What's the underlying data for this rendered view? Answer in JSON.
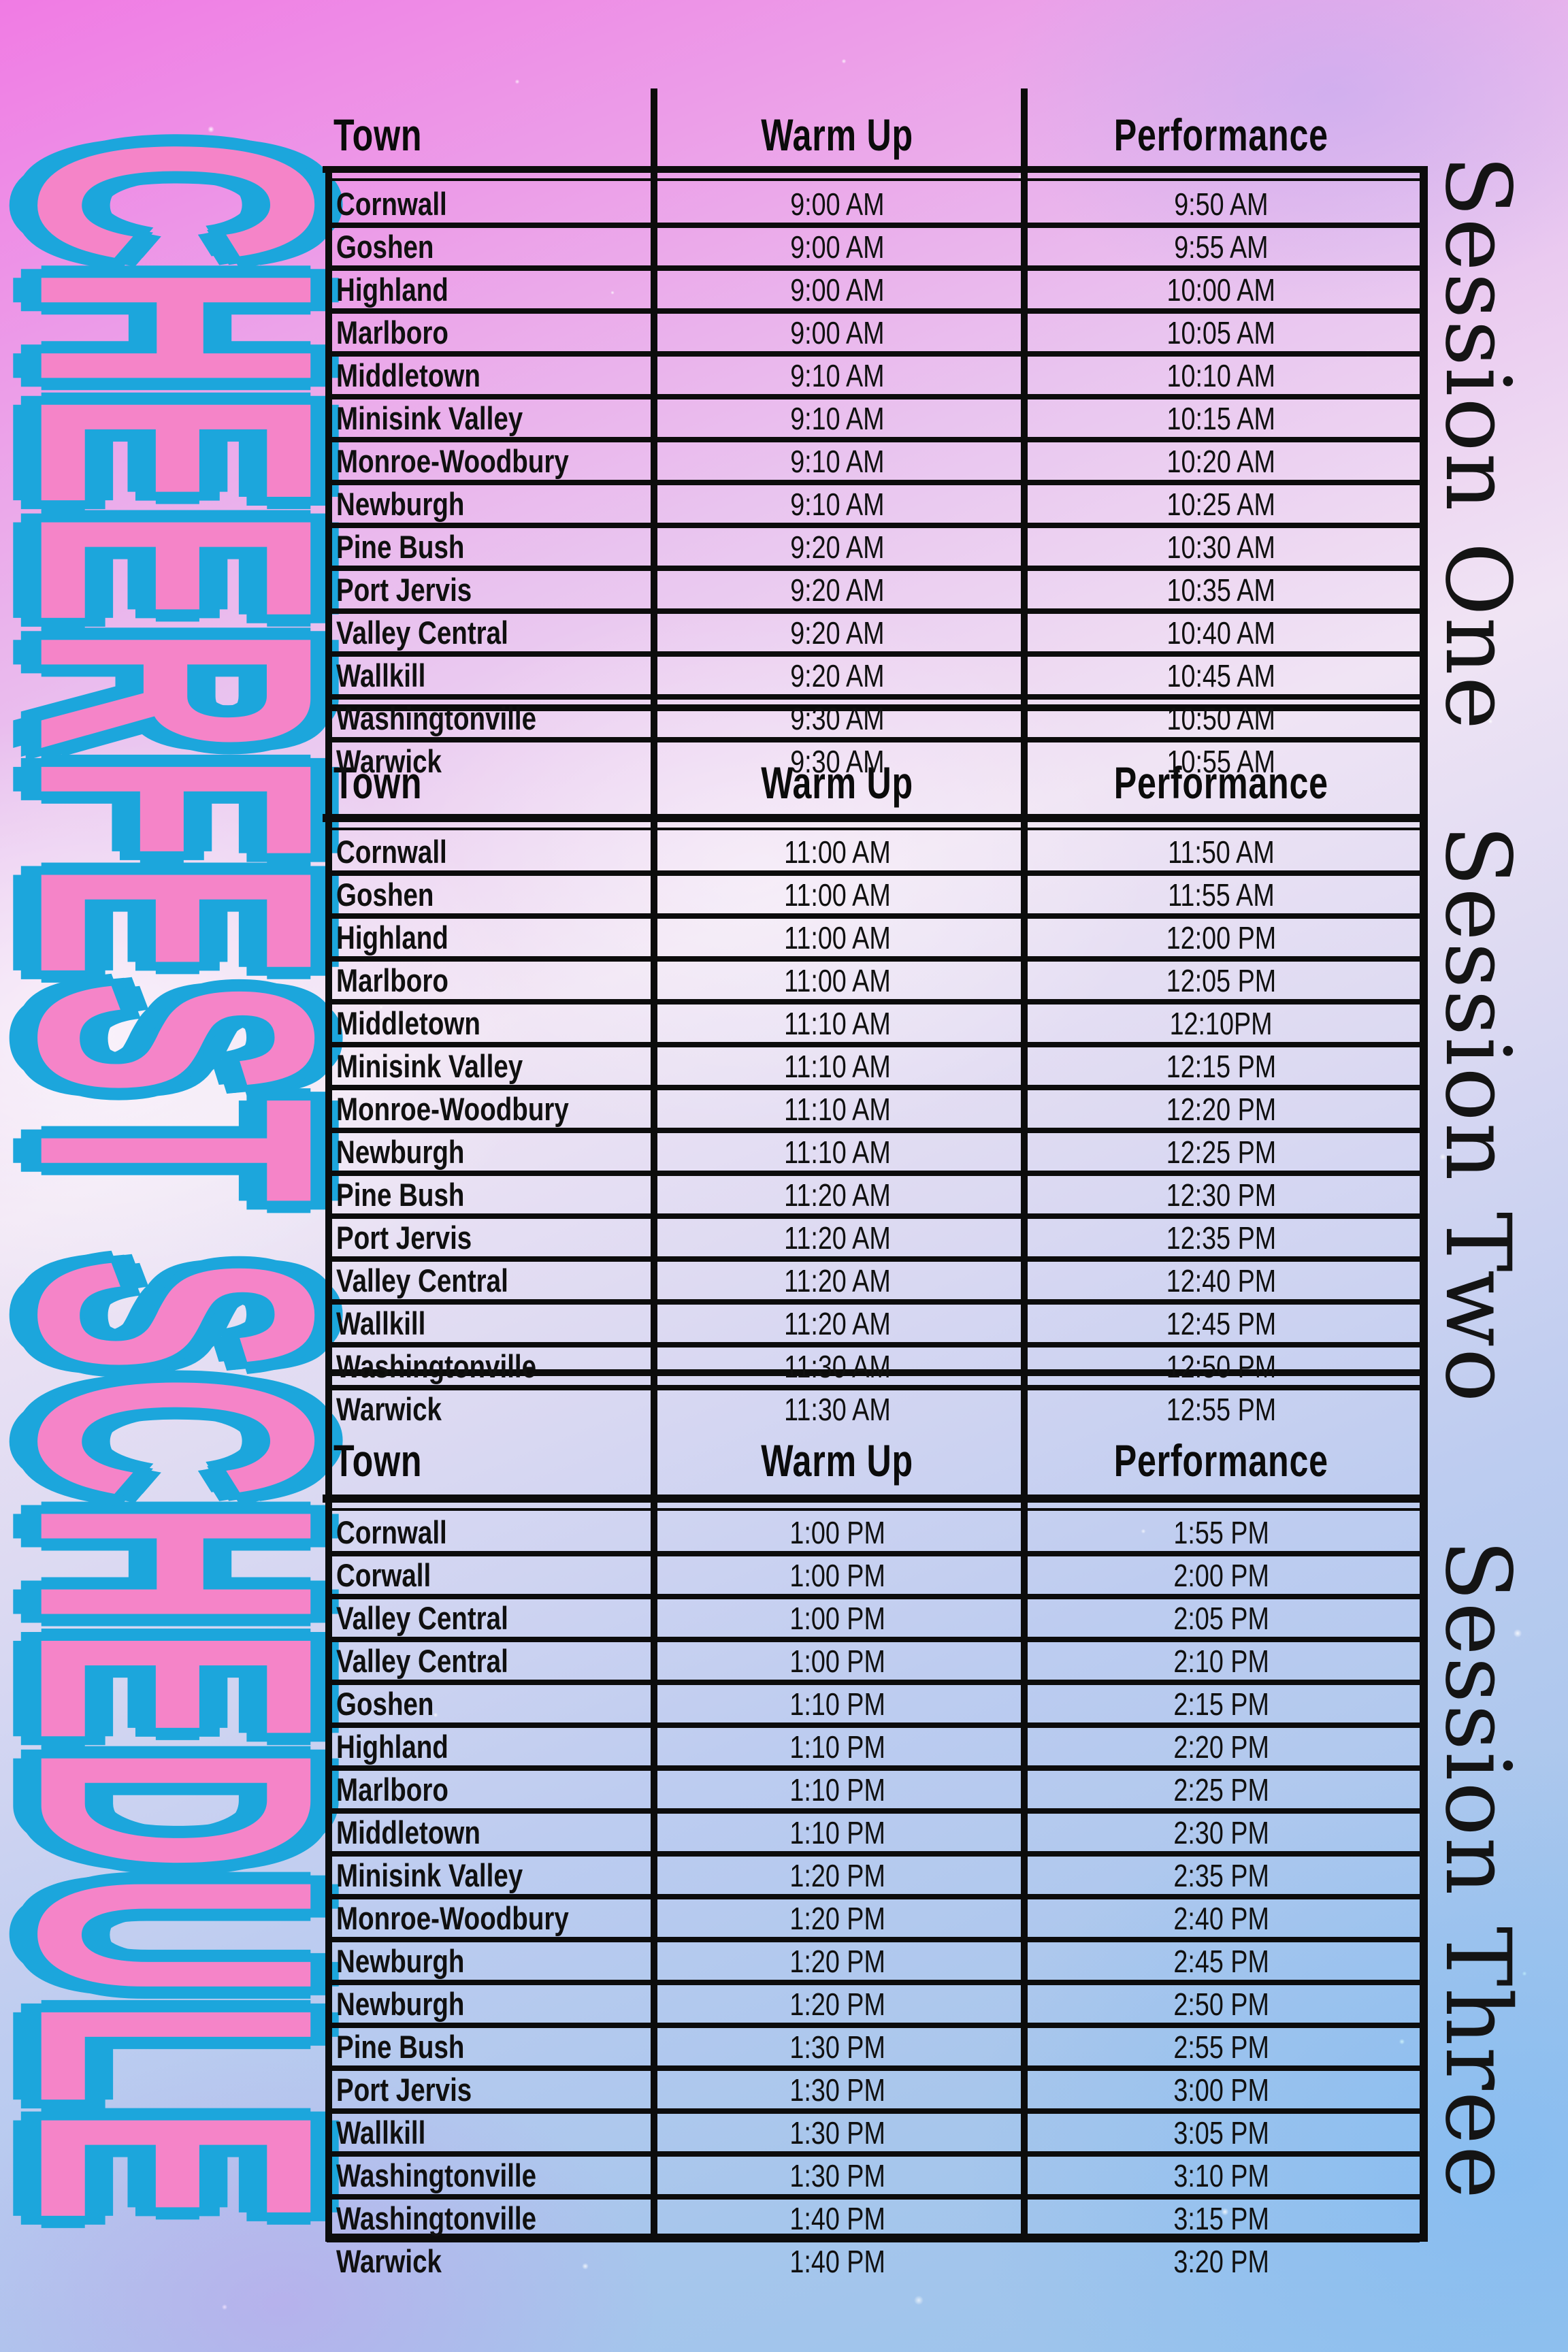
{
  "title": "CHEERFEST SCHEDULE",
  "columns": [
    "Town",
    "Warm Up",
    "Performance"
  ],
  "colors": {
    "title_fill": "#f584c8",
    "title_outline": "#1ca6dc",
    "table_line": "#0c0c0c",
    "text": "#0b0b0b",
    "background_top": "#f07be4",
    "background_bottom": "#97c3ec"
  },
  "sessions": [
    {
      "label": "Session One",
      "rows": [
        {
          "town": "Cornwall",
          "warm_up": "9:00 AM",
          "performance": "9:50 AM"
        },
        {
          "town": "Goshen",
          "warm_up": "9:00 AM",
          "performance": "9:55 AM"
        },
        {
          "town": "Highland",
          "warm_up": "9:00 AM",
          "performance": "10:00 AM"
        },
        {
          "town": "Marlboro",
          "warm_up": "9:00 AM",
          "performance": "10:05 AM"
        },
        {
          "town": "Middletown",
          "warm_up": "9:10 AM",
          "performance": "10:10 AM"
        },
        {
          "town": "Minisink Valley",
          "warm_up": "9:10 AM",
          "performance": "10:15 AM"
        },
        {
          "town": "Monroe-Woodbury",
          "warm_up": "9:10 AM",
          "performance": "10:20 AM"
        },
        {
          "town": "Newburgh",
          "warm_up": "9:10 AM",
          "performance": "10:25 AM"
        },
        {
          "town": "Pine Bush",
          "warm_up": "9:20 AM",
          "performance": "10:30 AM"
        },
        {
          "town": "Port Jervis",
          "warm_up": "9:20 AM",
          "performance": "10:35 AM"
        },
        {
          "town": "Valley Central",
          "warm_up": "9:20 AM",
          "performance": "10:40 AM"
        },
        {
          "town": "Wallkill",
          "warm_up": "9:20 AM",
          "performance": "10:45 AM"
        },
        {
          "town": "Washingtonville",
          "warm_up": "9:30 AM",
          "performance": "10:50 AM"
        },
        {
          "town": "Warwick",
          "warm_up": "9:30 AM",
          "performance": "10:55 AM"
        }
      ]
    },
    {
      "label": "Session Two",
      "rows": [
        {
          "town": "Cornwall",
          "warm_up": "11:00 AM",
          "performance": "11:50 AM"
        },
        {
          "town": "Goshen",
          "warm_up": "11:00 AM",
          "performance": "11:55 AM"
        },
        {
          "town": "Highland",
          "warm_up": "11:00 AM",
          "performance": "12:00 PM"
        },
        {
          "town": "Marlboro",
          "warm_up": "11:00 AM",
          "performance": "12:05 PM"
        },
        {
          "town": "Middletown",
          "warm_up": "11:10 AM",
          "performance": "12:10PM"
        },
        {
          "town": "Minisink Valley",
          "warm_up": "11:10 AM",
          "performance": "12:15 PM"
        },
        {
          "town": "Monroe-Woodbury",
          "warm_up": "11:10 AM",
          "performance": "12:20 PM"
        },
        {
          "town": "Newburgh",
          "warm_up": "11:10 AM",
          "performance": "12:25 PM"
        },
        {
          "town": "Pine Bush",
          "warm_up": "11:20 AM",
          "performance": "12:30 PM"
        },
        {
          "town": "Port Jervis",
          "warm_up": "11:20 AM",
          "performance": "12:35 PM"
        },
        {
          "town": "Valley Central",
          "warm_up": "11:20 AM",
          "performance": "12:40 PM"
        },
        {
          "town": "Wallkill",
          "warm_up": "11:20 AM",
          "performance": "12:45 PM"
        },
        {
          "town": "Washingtonville",
          "warm_up": "11:30 AM",
          "performance": "12:50 PM"
        },
        {
          "town": "Warwick",
          "warm_up": "11:30 AM",
          "performance": "12:55 PM"
        }
      ]
    },
    {
      "label": "Session Three",
      "rows": [
        {
          "town": "Cornwall",
          "warm_up": "1:00 PM",
          "performance": "1:55 PM"
        },
        {
          "town": "Corwall",
          "warm_up": "1:00 PM",
          "performance": "2:00 PM"
        },
        {
          "town": "Valley Central",
          "warm_up": "1:00 PM",
          "performance": "2:05 PM"
        },
        {
          "town": "Valley Central",
          "warm_up": "1:00 PM",
          "performance": "2:10 PM"
        },
        {
          "town": "Goshen",
          "warm_up": "1:10 PM",
          "performance": "2:15 PM"
        },
        {
          "town": "Highland",
          "warm_up": "1:10 PM",
          "performance": "2:20 PM"
        },
        {
          "town": "Marlboro",
          "warm_up": "1:10 PM",
          "performance": "2:25 PM"
        },
        {
          "town": "Middletown",
          "warm_up": "1:10 PM",
          "performance": "2:30 PM"
        },
        {
          "town": "Minisink Valley",
          "warm_up": "1:20 PM",
          "performance": "2:35 PM"
        },
        {
          "town": "Monroe-Woodbury",
          "warm_up": "1:20 PM",
          "performance": "2:40 PM"
        },
        {
          "town": "Newburgh",
          "warm_up": "1:20 PM",
          "performance": "2:45 PM"
        },
        {
          "town": "Newburgh",
          "warm_up": "1:20 PM",
          "performance": "2:50 PM"
        },
        {
          "town": "Pine Bush",
          "warm_up": "1:30 PM",
          "performance": "2:55 PM"
        },
        {
          "town": "Port Jervis",
          "warm_up": "1:30 PM",
          "performance": "3:00 PM"
        },
        {
          "town": "Wallkill",
          "warm_up": "1:30 PM",
          "performance": "3:05 PM"
        },
        {
          "town": "Washingtonville",
          "warm_up": "1:30 PM",
          "performance": "3:10 PM"
        },
        {
          "town": "Washingtonville",
          "warm_up": "1:40 PM",
          "performance": "3:15 PM"
        },
        {
          "town": "Warwick",
          "warm_up": "1:40 PM",
          "performance": "3:20 PM"
        }
      ]
    }
  ]
}
